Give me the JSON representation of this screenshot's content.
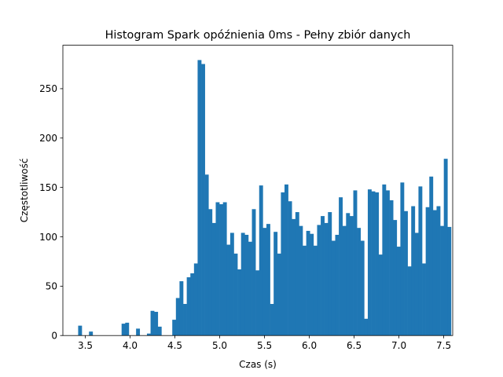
{
  "chart_data": {
    "type": "bar",
    "title": "Histogram Spark opóźnienia  0ms - Pełny zbiór danych",
    "xlabel": "Czas (s)",
    "ylabel": "Częstotliwość",
    "xlim": [
      3.25,
      7.6
    ],
    "ylim": [
      0,
      294
    ],
    "xticks": [
      3.5,
      4.0,
      4.5,
      5.0,
      5.5,
      6.0,
      6.5,
      7.0,
      7.5
    ],
    "xtick_labels": [
      "3.5",
      "4.0",
      "4.5",
      "5.0",
      "5.5",
      "6.0",
      "6.5",
      "7.0",
      "7.5"
    ],
    "yticks": [
      0,
      50,
      100,
      150,
      200,
      250
    ],
    "ytick_labels": [
      "0",
      "50",
      "100",
      "150",
      "200",
      "250"
    ],
    "bar_color": "#1f77b4",
    "bins": {
      "start": 3.38,
      "width": 0.0404,
      "counts": [
        0,
        10,
        0,
        0,
        4,
        0,
        0,
        0,
        0,
        0,
        0,
        0,
        0,
        12,
        13,
        0,
        0,
        7,
        0,
        0,
        2,
        25,
        24,
        9,
        0,
        0,
        0,
        16,
        38,
        55,
        32,
        59,
        63,
        73,
        279,
        275,
        163,
        128,
        114,
        135,
        133,
        135,
        92,
        104,
        83,
        67,
        104,
        102,
        95,
        128,
        66,
        152,
        109,
        113,
        32,
        105,
        83,
        145,
        153,
        136,
        118,
        125,
        111,
        91,
        106,
        103,
        91,
        112,
        121,
        114,
        125,
        96,
        102,
        140,
        111,
        124,
        121,
        147,
        109,
        96,
        17,
        148,
        146,
        145,
        82,
        153,
        147,
        137,
        117,
        90,
        155,
        126,
        70,
        131,
        104,
        151,
        73,
        130,
        161,
        127,
        131,
        111,
        179,
        110
      ]
    }
  }
}
